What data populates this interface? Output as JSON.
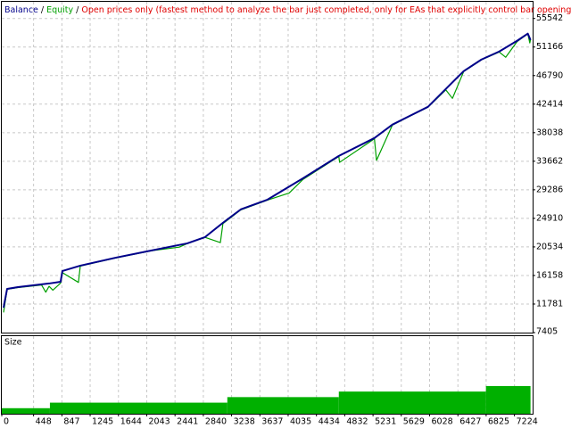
{
  "chart_data": [
    {
      "type": "line",
      "legend_separator": "/",
      "subtitle": "Open prices only (fastest method to analyze the bar just completed, only for EAs that explicitly control bar opening)",
      "subtitle_color": "#e00000",
      "xlim": [
        0,
        7480
      ],
      "xticks": [
        0,
        448,
        847,
        1245,
        1644,
        2043,
        2441,
        2840,
        3238,
        3637,
        4035,
        4434,
        4832,
        5231,
        5629,
        6028,
        6427,
        6825,
        7224
      ],
      "ylim": [
        7405,
        58100
      ],
      "yticks": [
        7405,
        11781,
        16158,
        20534,
        24910,
        29286,
        33662,
        38038,
        42414,
        46790,
        51166,
        55542
      ],
      "grid": true,
      "series": [
        {
          "name": "Balance",
          "color": "#00008b",
          "x": [
            25,
            75,
            226,
            666,
            829,
            854,
            1106,
            1608,
            2111,
            2613,
            2864,
            3116,
            3367,
            3744,
            4246,
            4749,
            5251,
            5503,
            5754,
            6005,
            6256,
            6508,
            6759,
            7010,
            7261,
            7412,
            7450
          ],
          "values": [
            11230,
            14100,
            14380,
            14930,
            15200,
            16840,
            17660,
            18890,
            19990,
            21080,
            22040,
            24230,
            26280,
            27780,
            31060,
            34480,
            37220,
            39270,
            40640,
            42000,
            44740,
            47470,
            49250,
            50480,
            52120,
            53220,
            52260
          ]
        },
        {
          "name": "Equity",
          "color": "#00a000",
          "x": [
            25,
            75,
            226,
            560,
            620,
            666,
            720,
            829,
            854,
            1080,
            1106,
            1608,
            2111,
            2500,
            2613,
            2864,
            3080,
            3116,
            3367,
            3744,
            4050,
            4246,
            4749,
            4760,
            5251,
            5280,
            5503,
            5754,
            6005,
            6256,
            6350,
            6508,
            6759,
            7010,
            7100,
            7261,
            7412,
            7440,
            7450
          ],
          "values": [
            10500,
            14050,
            14300,
            14700,
            13600,
            14500,
            13900,
            15000,
            16600,
            15100,
            17600,
            18850,
            19950,
            20500,
            21050,
            22000,
            21200,
            24100,
            26200,
            27700,
            28800,
            30900,
            34400,
            33500,
            37100,
            33800,
            39200,
            40600,
            41950,
            44600,
            43300,
            47400,
            49200,
            50400,
            49600,
            52000,
            53200,
            51800,
            52300
          ]
        }
      ]
    },
    {
      "type": "histogram",
      "title": "Size",
      "color": "#00b000",
      "bins": [
        0,
        678,
        3178,
        4749,
        6822,
        7450
      ],
      "values": [
        0.1,
        0.2,
        0.3,
        0.4,
        0.5
      ],
      "ylim": [
        0,
        1.4
      ]
    }
  ]
}
